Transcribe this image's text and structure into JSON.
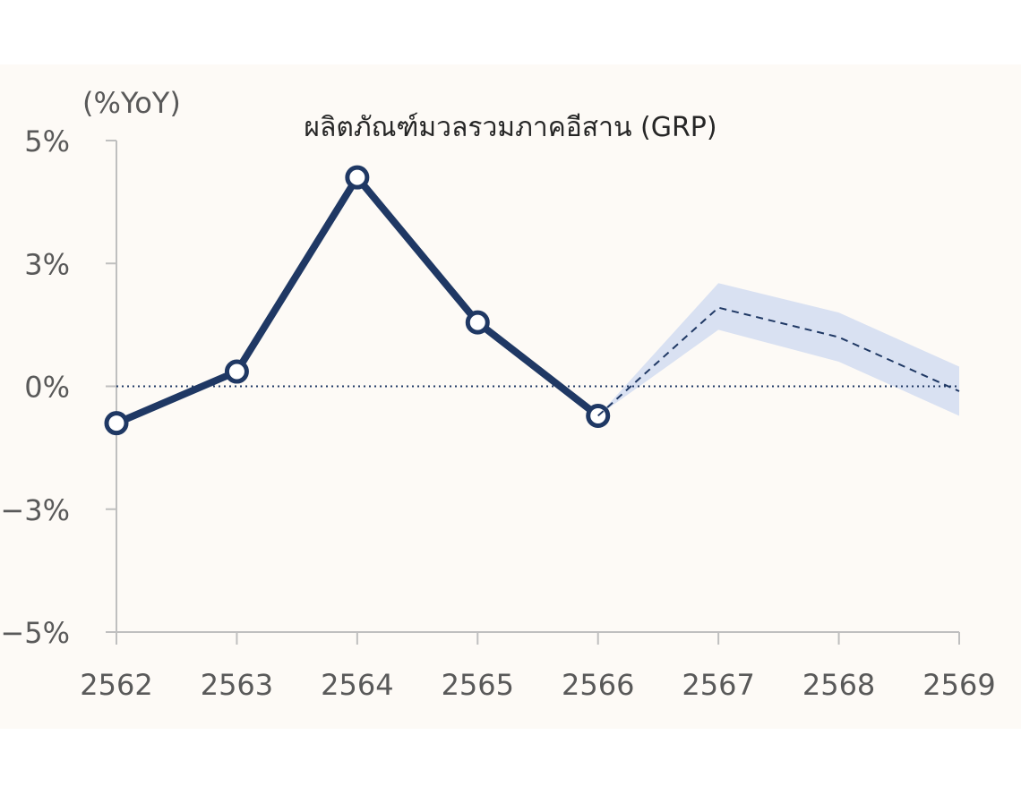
{
  "chart_data": {
    "type": "line",
    "title": "ผลิตภัณฑ์มวลรวมภาคอีสาน (GRP)",
    "unit_label": "(%YoY)",
    "categories": [
      "2562",
      "2563",
      "2564",
      "2565",
      "2566",
      "2567",
      "2568",
      "2569"
    ],
    "y_ticks": [
      {
        "value": 5,
        "label": "5%"
      },
      {
        "value": 2.5,
        "label": "3%"
      },
      {
        "value": 0,
        "label": "0%"
      },
      {
        "value": -2.5,
        "label": "-3%"
      },
      {
        "value": -5,
        "label": "-5%"
      }
    ],
    "ylim": [
      -5,
      5
    ],
    "grid": false,
    "zero_line": "dotted",
    "series": [
      {
        "style": "solid-markers",
        "color": "#1f3864",
        "points": [
          {
            "x": "2562",
            "y": -0.75
          },
          {
            "x": "2563",
            "y": 0.3
          },
          {
            "x": "2564",
            "y": 4.25
          },
          {
            "x": "2565",
            "y": 1.3
          },
          {
            "x": "2566",
            "y": -0.6
          }
        ]
      },
      {
        "style": "dashed-forecast",
        "color": "#1f3864",
        "points": [
          {
            "x": "2566",
            "y": -0.6
          },
          {
            "x": "2567",
            "y": 1.6
          },
          {
            "x": "2568",
            "y": 1.0
          },
          {
            "x": "2569",
            "y": -0.1
          }
        ]
      }
    ],
    "forecast_band": {
      "color": "#d9e1f2",
      "points": [
        {
          "x": "2566",
          "upper": -0.6,
          "lower": -0.6
        },
        {
          "x": "2567",
          "upper": 2.1,
          "lower": 1.15
        },
        {
          "x": "2568",
          "upper": 1.5,
          "lower": 0.5
        },
        {
          "x": "2569",
          "upper": 0.4,
          "lower": -0.6
        }
      ]
    }
  }
}
